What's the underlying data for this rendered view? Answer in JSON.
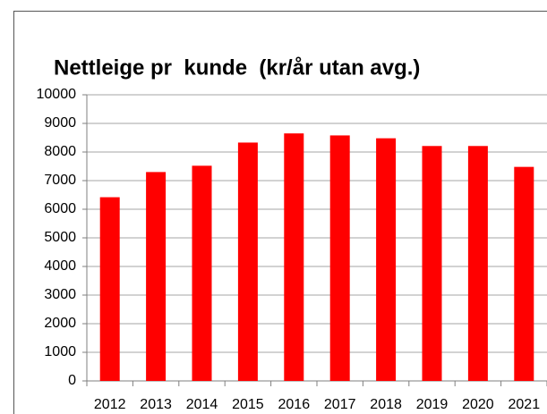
{
  "chart_data": {
    "type": "bar",
    "title": "Nettleige pr  kunde  (kr/år utan avg.)",
    "categories": [
      "2012",
      "2013",
      "2014",
      "2015",
      "2016",
      "2017",
      "2018",
      "2019",
      "2020",
      "2021"
    ],
    "values": [
      6420,
      7300,
      7520,
      8330,
      8650,
      8580,
      8480,
      8210,
      8210,
      7480
    ],
    "color": "#ff0000",
    "ylim": [
      0,
      10000
    ],
    "yticks": [
      0,
      1000,
      2000,
      3000,
      4000,
      5000,
      6000,
      7000,
      8000,
      9000,
      10000
    ],
    "grid": true
  }
}
